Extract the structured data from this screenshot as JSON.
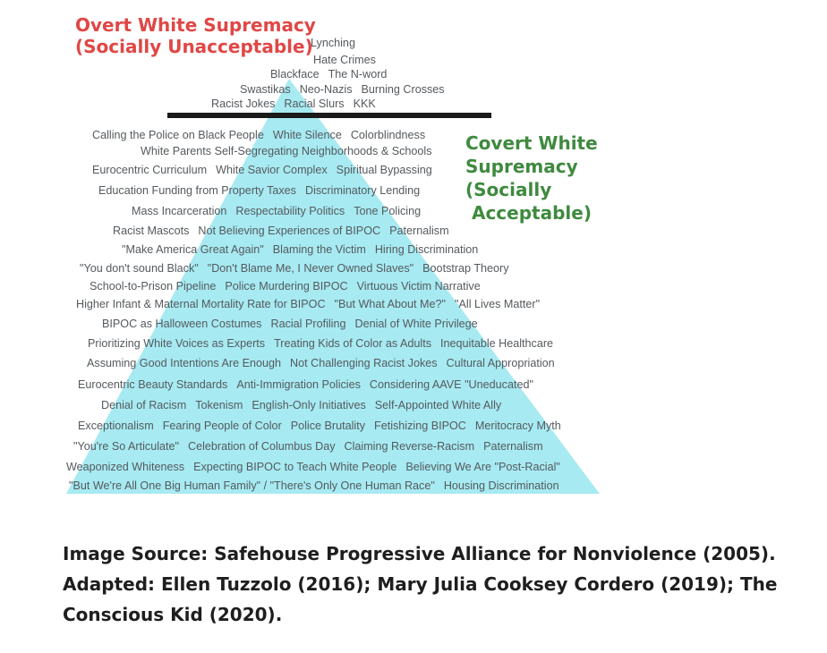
{
  "diagram": {
    "colors": {
      "pyramid": "#a7eaf2",
      "overt": "#e04746",
      "covert": "#3f8a3f",
      "item_text": "#555a5e",
      "divider": "#1a1a1a"
    },
    "overt_title": [
      "Overt White Supremacy",
      "(Socially Unacceptable)"
    ],
    "covert_title": [
      "Covert White",
      "Supremacy",
      "(Socially",
      " Acceptable)"
    ],
    "overt_rows": [
      [
        "Lynching"
      ],
      [
        "Hate Crimes"
      ],
      [
        "Blackface",
        "The N-word"
      ],
      [
        "Swastikas",
        "Neo-Nazis",
        "Burning Crosses"
      ],
      [
        "Racist Jokes",
        "Racial Slurs",
        "KKK"
      ]
    ],
    "covert_rows": [
      [
        "Calling the Police on Black People",
        "White Silence",
        "Colorblindness"
      ],
      [
        "White Parents Self-Segregating Neighborhoods & Schools"
      ],
      [
        "Eurocentric Curriculum",
        "White Savior Complex",
        "Spiritual Bypassing"
      ],
      [
        "Education Funding from Property Taxes",
        "Discriminatory Lending"
      ],
      [
        "Mass Incarceration",
        "Respectability Politics",
        "Tone Policing"
      ],
      [
        "Racist Mascots",
        "Not Believing Experiences of BIPOC",
        "Paternalism"
      ],
      [
        "\"Make America Great Again\"",
        "Blaming the Victim",
        "Hiring Discrimination"
      ],
      [
        "\"You don't sound Black\"",
        "\"Don't Blame Me, I Never Owned Slaves\"",
        "Bootstrap Theory"
      ],
      [
        "School-to-Prison Pipeline",
        "Police Murdering BIPOC",
        "Virtuous Victim Narrative"
      ],
      [
        "Higher Infant & Maternal Mortality Rate for BIPOC",
        "\"But What About Me?\"",
        "\"All Lives Matter\""
      ],
      [
        "BIPOC as Halloween Costumes",
        "Racial Profiling",
        "Denial of White Privilege"
      ],
      [
        "Prioritizing White Voices as Experts",
        "Treating Kids of Color as Adults",
        "Inequitable Healthcare"
      ],
      [
        "Assuming Good Intentions Are Enough",
        "Not Challenging Racist Jokes",
        "Cultural Appropriation"
      ],
      [
        "Eurocentric Beauty Standards",
        "Anti-Immigration Policies",
        "Considering AAVE \"Uneducated\""
      ],
      [
        "Denial of Racism",
        "Tokenism",
        "English-Only Initiatives",
        "Self-Appointed White Ally"
      ],
      [
        "Exceptionalism",
        "Fearing People of Color",
        "Police Brutality",
        "Fetishizing BIPOC",
        "Meritocracy Myth"
      ],
      [
        "\"You're So Articulate\"",
        "Celebration of Columbus Day",
        "Claiming Reverse-Racism",
        "Paternalism"
      ],
      [
        "Weaponized Whiteness",
        "Expecting BIPOC to Teach White People",
        "Believing We Are \"Post-Racial\""
      ],
      [
        "\"But We're All One Big Human Family\" / \"There's Only One Human Race\"",
        "Housing Discrimination"
      ]
    ]
  },
  "caption": {
    "lines": [
      "Image Source: Safehouse Progressive Alliance for Nonviolence (2005).",
      "Adapted: Ellen Tuzzolo (2016); Mary Julia Cooksey Cordero (2019); The",
      "Conscious Kid (2020)."
    ]
  }
}
